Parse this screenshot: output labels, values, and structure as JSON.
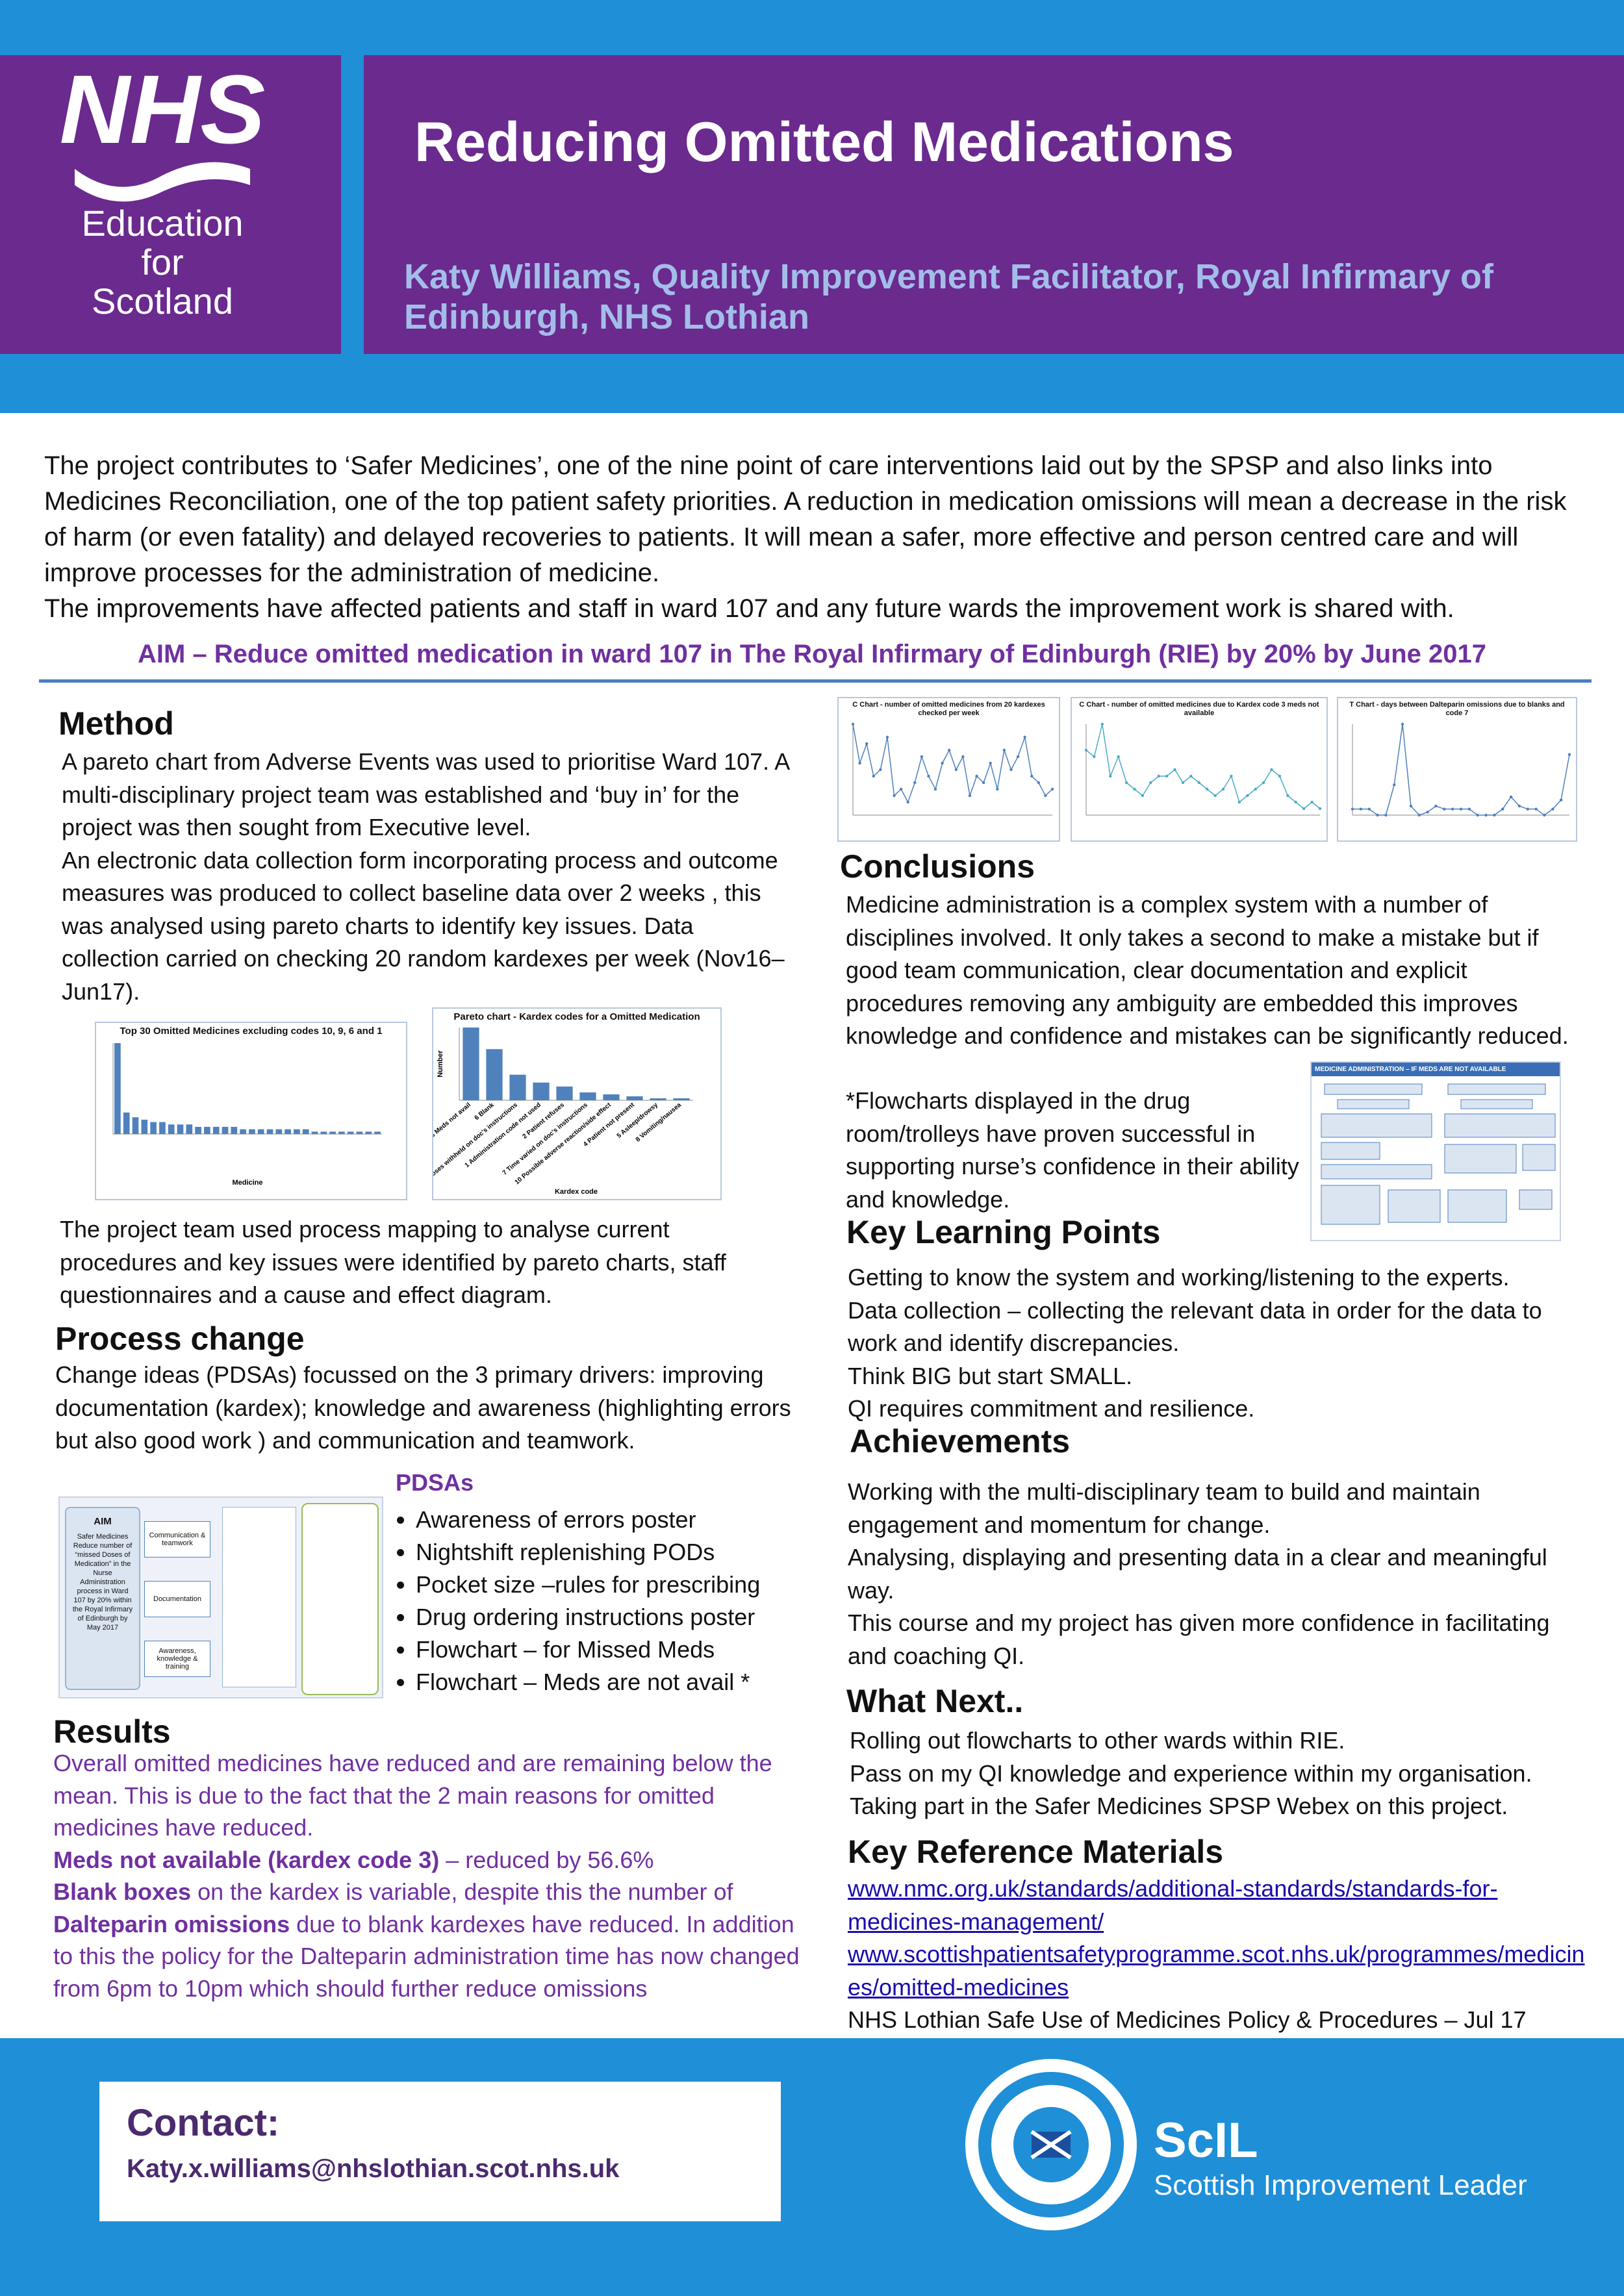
{
  "header": {
    "logo_nhs": "NHS",
    "logo_lines": [
      "Education",
      "for",
      "Scotland"
    ],
    "title": "Reducing Omitted Medications",
    "author": "Katy Williams, Quality Improvement Facilitator, Royal Infirmary of Edinburgh, NHS Lothian"
  },
  "intro": {
    "paragraphs": [
      "The project contributes to ‘Safer Medicines’, one of the nine point of care interventions laid out by the SPSP and also links into Medicines Reconciliation, one of the top patient safety priorities.  A reduction in medication omissions will mean a decrease in the risk of harm (or even fatality) and delayed recoveries to patients.  It will mean a safer, more effective and person centred care and will improve processes for the administration of medicine.",
      "The improvements have affected patients and staff in ward 107 and any future wards the improvement work is shared with."
    ],
    "aim": "AIM – Reduce omitted medication in ward 107 in The Royal Infirmary of Edinburgh (RIE) by 20% by June 2017"
  },
  "method": {
    "heading": "Method",
    "paragraphs": [
      "A pareto chart from Adverse Events was used to prioritise Ward 107. A multi-disciplinary project team was established and ‘buy in’ for the project was then sought from Executive level.",
      "An electronic data collection form  incorporating process and outcome measures was produced to collect baseline data over 2 weeks , this was analysed using pareto charts to identify key issues.  Data collection carried on checking 20 random kardexes per week (Nov16–Jun17)."
    ],
    "after": "The project team used process mapping to analyse current procedures and key issues were identified by pareto charts, staff questionnaires and a cause and effect diagram."
  },
  "method_chart_1": {
    "type": "bar",
    "title": "Top 30 Omitted Medicines excluding codes 10, 9, 6 and 1",
    "x_label": "Medicine",
    "color": "#4f81bd",
    "values": [
      38,
      9,
      7,
      6,
      5,
      5,
      4,
      4,
      4,
      3,
      3,
      3,
      3,
      3,
      2,
      2,
      2,
      2,
      2,
      2,
      2,
      2,
      1,
      1,
      1,
      1,
      1,
      1,
      1,
      1
    ]
  },
  "method_chart_2": {
    "type": "bar",
    "title": "Pareto chart - Kardex codes for a Omitted Medication",
    "y_label": "Number",
    "x_label": "Kardex code",
    "color": "#4f81bd",
    "categories": [
      "3 Meds not avail",
      "6 Blank",
      "9 Doses withheld on doc's instructions",
      "1 Administration code not used",
      "2 Patient refuses",
      "7 Time varied on doc's instructions",
      "10 Possible adverse reaction/side effect",
      "4 Patient not present",
      "5 Asleep/drowsy",
      "8 Vomiting/nausea"
    ],
    "values": [
      37,
      26,
      13,
      9,
      7,
      4,
      3,
      2,
      1,
      1
    ]
  },
  "process_change": {
    "heading": "Process change",
    "text": "Change ideas (PDSAs) focussed on the 3 primary drivers: improving documentation (kardex); knowledge and awareness (highlighting errors but also good work ) and communication and teamwork.",
    "diagram": {
      "aim_title": "AIM",
      "aim_text": "Safer Medicines Reduce number of “missed Doses of Medication” in the Nurse Administration process in Ward 107 by 20% within the Royal Infirmary of Edinburgh by May 2017",
      "drivers": [
        "Communication & teamwork",
        "Documentation",
        "Awareness, knowledge & training"
      ]
    },
    "pdsas": {
      "heading": "PDSAs",
      "items": [
        "Awareness of errors poster",
        "Nightshift replenishing PODs",
        "Pocket size –rules for prescribing",
        "Drug ordering instructions poster",
        "Flowchart – for Missed Meds",
        "Flowchart – Meds are not avail *"
      ]
    }
  },
  "results": {
    "heading": "Results",
    "paragraphs": [
      [
        {
          "text": "Overall omitted medicines have reduced and are remaining below the mean.  This is due to the fact that the 2 main reasons for omitted medicines have reduced.",
          "bold": false
        }
      ],
      [
        {
          "text": "Meds not available (kardex code 3)",
          "bold": true
        },
        {
          "text": " – reduced by 56.6%",
          "bold": false
        }
      ],
      [
        {
          "text": "Blank boxes",
          "bold": true
        },
        {
          "text": " on the kardex is variable, despite this the number of ",
          "bold": false
        },
        {
          "text": "Dalteparin omissions",
          "bold": true
        },
        {
          "text": " due to blank kardexes have reduced.  In addition to this the policy for the Dalteparin administration time has now changed from 6pm to 10pm which should further reduce omissions",
          "bold": false
        }
      ]
    ]
  },
  "right_charts": [
    {
      "type": "line",
      "title": "C Chart - number of omitted medicines from 20 kardexes checked per week",
      "color": "#4f81bd",
      "values": [
        14,
        8,
        11,
        6,
        7,
        12,
        3,
        4,
        2,
        5,
        9,
        6,
        4,
        8,
        10,
        7,
        9,
        3,
        6,
        5,
        8,
        4,
        10,
        7,
        9,
        12,
        6,
        5,
        3,
        4
      ]
    },
    {
      "type": "line",
      "title": "C Chart - number of omitted medicines due to Kardex code 3 meds not available",
      "color": "#4bacc6",
      "values": [
        10,
        9,
        14,
        6,
        9,
        5,
        4,
        3,
        5,
        6,
        6,
        7,
        5,
        6,
        5,
        4,
        3,
        4,
        6,
        2,
        3,
        4,
        5,
        7,
        6,
        3,
        2,
        1,
        2,
        1
      ]
    },
    {
      "type": "line",
      "title": "T Chart -  days between Dalteparin omissions due to blanks and code 7",
      "color": "#4f81bd",
      "values": [
        2,
        2,
        2,
        0,
        0,
        10,
        30,
        3,
        0,
        1,
        3,
        2,
        2,
        2,
        2,
        0,
        0,
        0,
        2,
        6,
        3,
        2,
        2,
        0,
        2,
        5,
        20
      ]
    }
  ],
  "conclusions": {
    "heading": "Conclusions",
    "text": "Medicine administration is a complex system with a number of disciplines involved. It only takes a second to make a mistake but if good team communication, clear documentation and explicit procedures removing any ambiguity are embedded this improves knowledge and confidence and mistakes can be significantly reduced.",
    "flowchart_text": "*Flowcharts displayed in the drug room/trolleys have proven successful in supporting nurse’s confidence in their ability and knowledge.",
    "flowchart_title": "MEDICINE ADMINISTRATION – IF MEDS ARE NOT AVAILABLE"
  },
  "key_learning": {
    "heading": "Key Learning Points",
    "paragraphs": [
      "Getting to know the system and working/listening to the experts.",
      "Data collection – collecting the relevant data in order for the data to work and identify discrepancies.",
      "Think BIG but start SMALL.",
      "QI requires commitment and resilience."
    ]
  },
  "achievements": {
    "heading": "Achievements",
    "paragraphs": [
      "Working with the multi-disciplinary team to build and maintain engagement and momentum for change.",
      "Analysing, displaying and presenting data in a clear and meaningful way.",
      "This course and my project has given more confidence in facilitating and coaching QI."
    ]
  },
  "what_next": {
    "heading": "What Next..",
    "paragraphs": [
      "Rolling out flowcharts to other wards within RIE.",
      "Pass on my QI knowledge and experience within my organisation.",
      "Taking part in the Safer Medicines SPSP Webex on this project."
    ]
  },
  "references": {
    "heading": "Key Reference Materials",
    "items": [
      {
        "text": "www.nmc.org.uk/standards/additional-standards/standards-for-medicines-management/",
        "link": true
      },
      {
        "text": "www.scottishpatientsafetyprogramme.scot.nhs.uk/programmes/medicines/omitted-medicines",
        "link": true
      },
      {
        "text": "NHS Lothian Safe Use of Medicines Policy & Procedures – Jul 17",
        "link": false
      }
    ]
  },
  "footer": {
    "contact_heading": "Contact:",
    "email": "Katy.x.williams@nhslothian.scot.nhs.uk",
    "scil_title": "ScIL",
    "scil_subtitle": "Scottish Improvement Leader"
  }
}
